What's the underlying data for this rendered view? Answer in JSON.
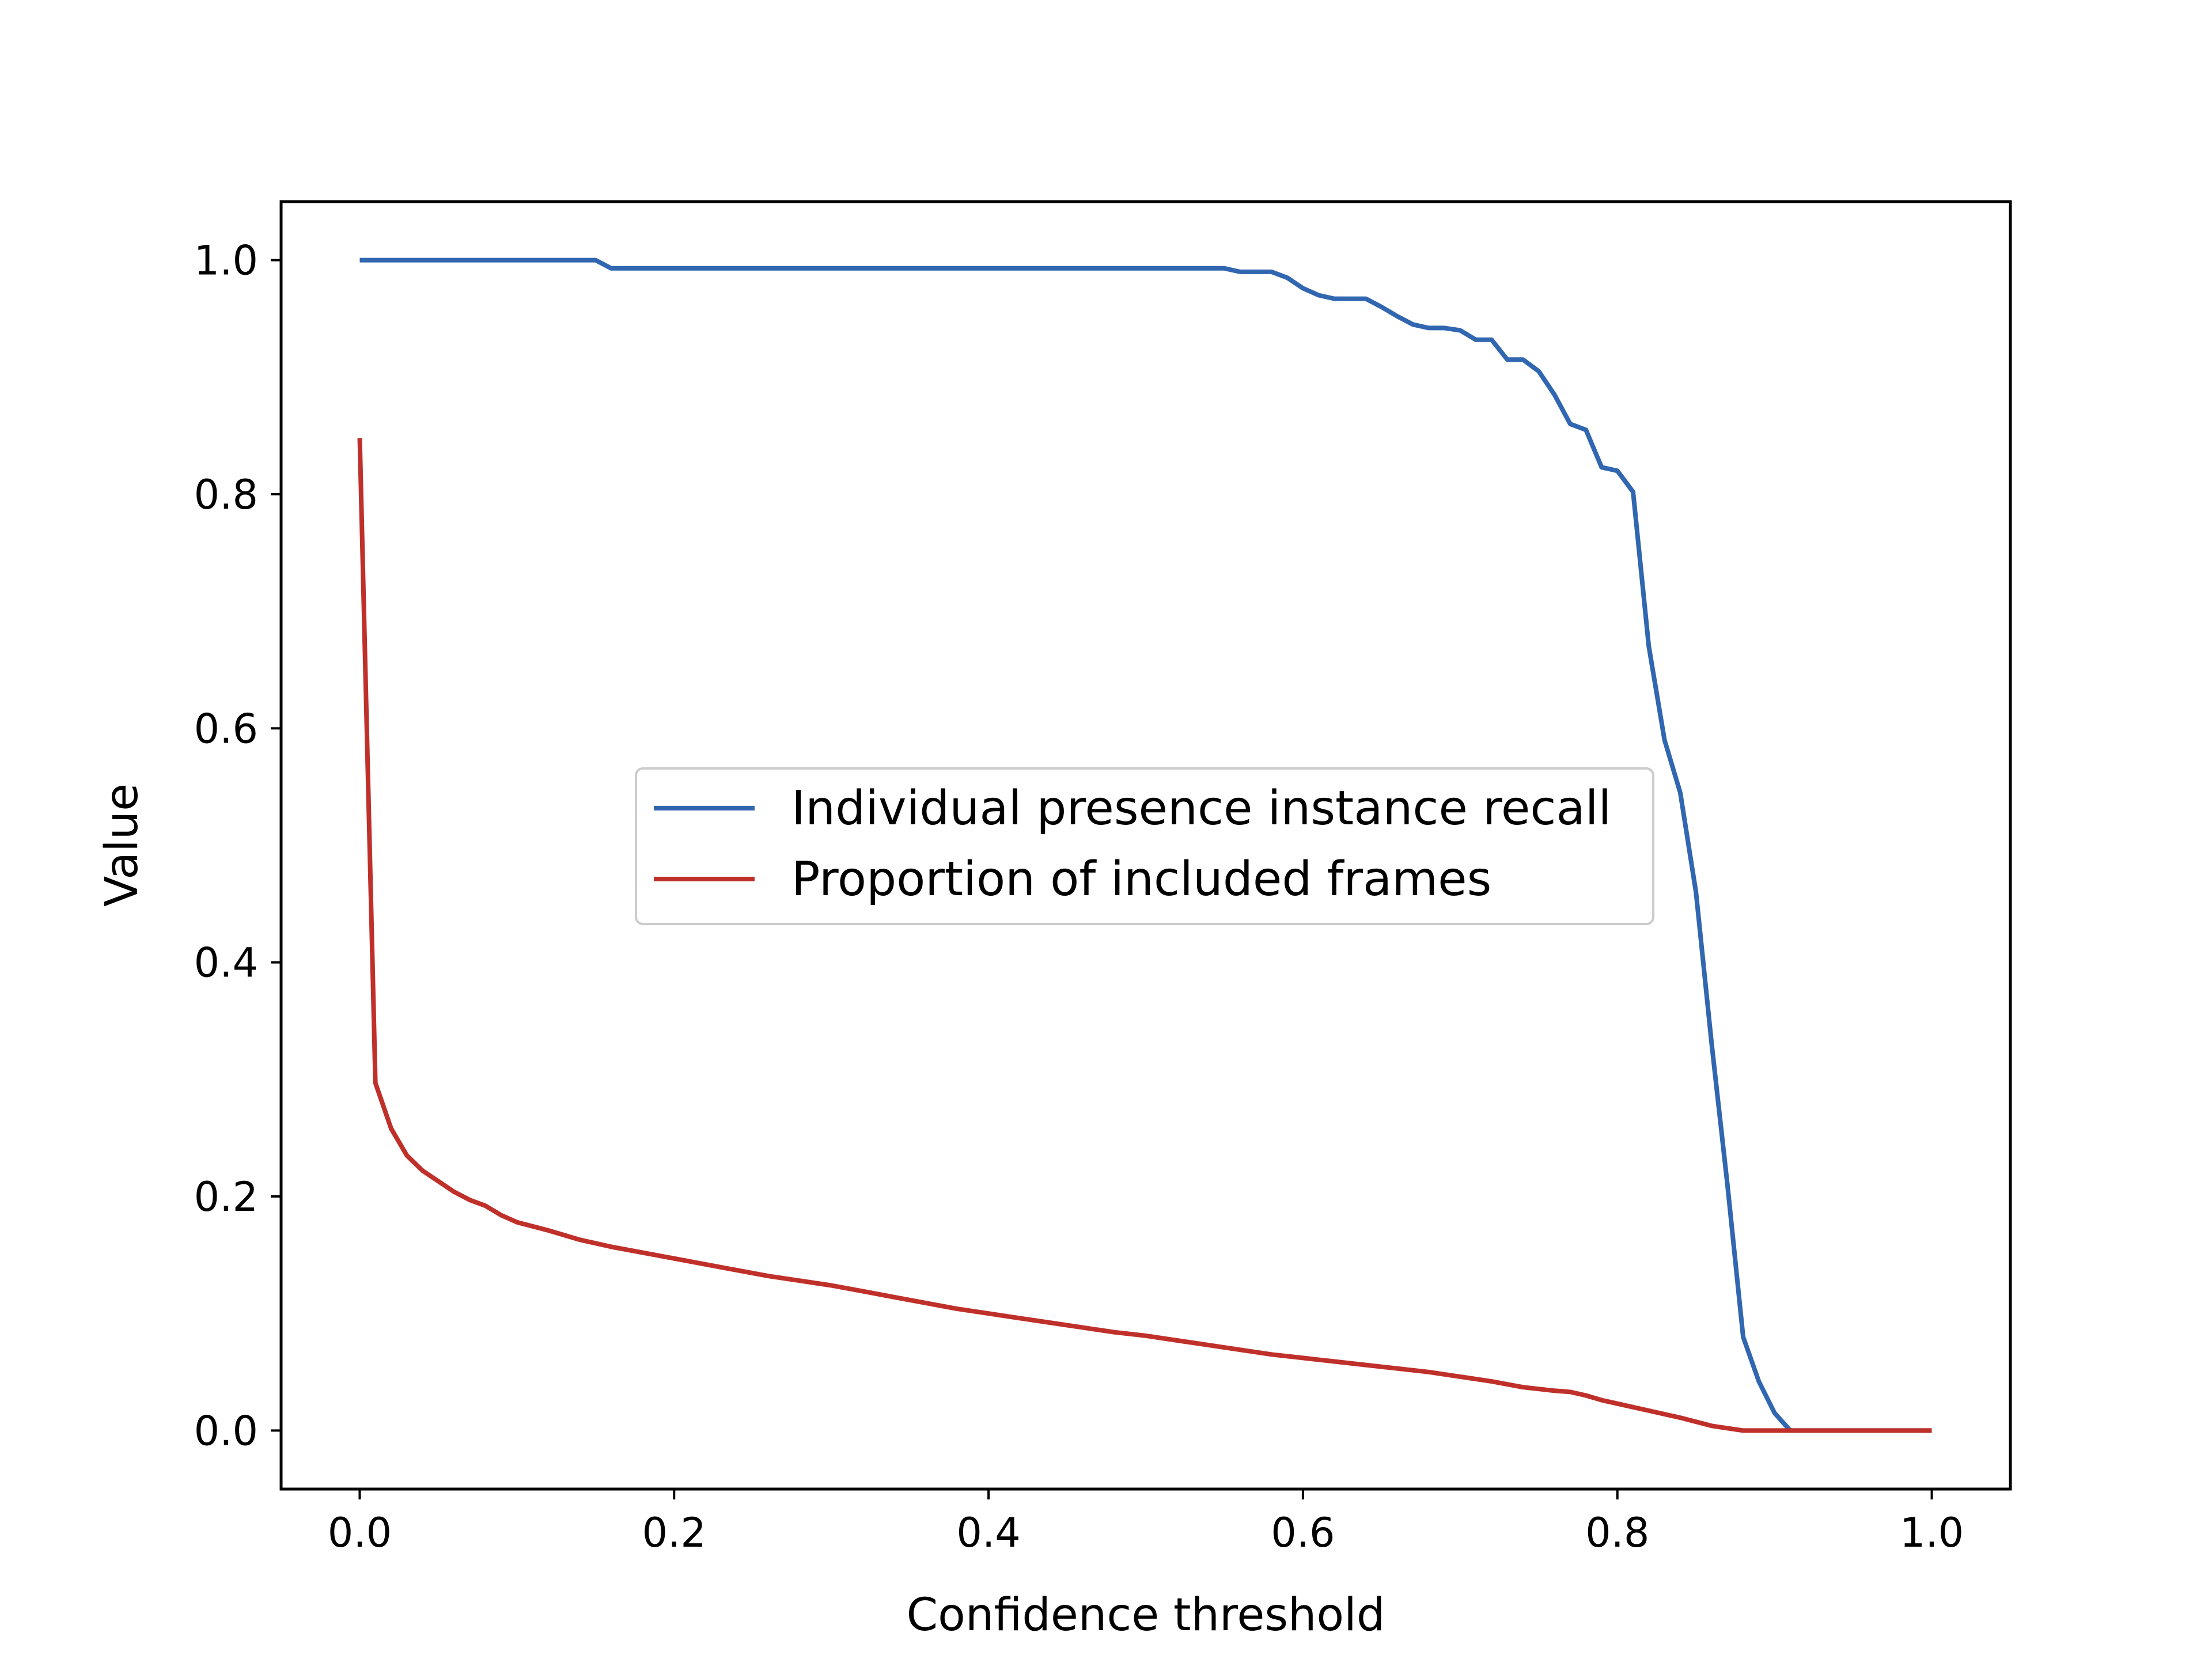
{
  "chart_data": {
    "type": "line",
    "xlabel": "Confidence threshold",
    "ylabel": "Value",
    "xlim": [
      -0.05,
      1.05
    ],
    "ylim": [
      -0.05,
      1.05
    ],
    "xticks": [
      0.0,
      0.2,
      0.4,
      0.6,
      0.8,
      1.0
    ],
    "yticks": [
      0.0,
      0.2,
      0.4,
      0.6,
      0.8,
      1.0
    ],
    "xtick_labels": [
      "0.0",
      "0.2",
      "0.4",
      "0.6",
      "0.8",
      "1.0"
    ],
    "ytick_labels": [
      "0.0",
      "0.2",
      "0.4",
      "0.6",
      "0.8",
      "1.0"
    ],
    "grid": false,
    "legend_position": "center",
    "series": [
      {
        "name": "Individual presence instance recall",
        "color": "#3166b0",
        "x": [
          0.0,
          0.15,
          0.16,
          0.55,
          0.56,
          0.58,
          0.59,
          0.6,
          0.61,
          0.62,
          0.64,
          0.65,
          0.66,
          0.67,
          0.68,
          0.69,
          0.7,
          0.71,
          0.72,
          0.73,
          0.74,
          0.75,
          0.76,
          0.77,
          0.78,
          0.79,
          0.8,
          0.81,
          0.82,
          0.83,
          0.84,
          0.85,
          0.86,
          0.87,
          0.88,
          0.89,
          0.9,
          0.91,
          1.0
        ],
        "values": [
          1.0,
          1.0,
          0.993,
          0.993,
          0.99,
          0.99,
          0.985,
          0.976,
          0.97,
          0.967,
          0.967,
          0.96,
          0.952,
          0.945,
          0.942,
          0.942,
          0.94,
          0.932,
          0.932,
          0.915,
          0.915,
          0.905,
          0.885,
          0.86,
          0.855,
          0.823,
          0.82,
          0.802,
          0.67,
          0.59,
          0.545,
          0.46,
          0.33,
          0.21,
          0.08,
          0.042,
          0.015,
          0.0,
          0.0
        ]
      },
      {
        "name": "Proportion of included frames",
        "color": "#c0302a",
        "x": [
          0.0,
          0.01,
          0.02,
          0.03,
          0.04,
          0.05,
          0.06,
          0.07,
          0.08,
          0.09,
          0.1,
          0.12,
          0.14,
          0.16,
          0.18,
          0.2,
          0.22,
          0.24,
          0.26,
          0.28,
          0.3,
          0.32,
          0.34,
          0.36,
          0.38,
          0.4,
          0.42,
          0.44,
          0.46,
          0.48,
          0.5,
          0.52,
          0.54,
          0.56,
          0.58,
          0.6,
          0.62,
          0.64,
          0.66,
          0.68,
          0.7,
          0.72,
          0.74,
          0.76,
          0.77,
          0.78,
          0.79,
          0.8,
          0.82,
          0.84,
          0.86,
          0.88,
          0.9,
          1.0
        ],
        "values": [
          0.848,
          0.297,
          0.258,
          0.235,
          0.222,
          0.213,
          0.204,
          0.197,
          0.192,
          0.184,
          0.178,
          0.171,
          0.163,
          0.157,
          0.152,
          0.147,
          0.142,
          0.137,
          0.132,
          0.128,
          0.124,
          0.119,
          0.114,
          0.109,
          0.104,
          0.1,
          0.096,
          0.092,
          0.088,
          0.084,
          0.081,
          0.077,
          0.073,
          0.069,
          0.065,
          0.062,
          0.059,
          0.056,
          0.053,
          0.05,
          0.046,
          0.042,
          0.037,
          0.034,
          0.033,
          0.03,
          0.026,
          0.023,
          0.017,
          0.011,
          0.004,
          0.0,
          0.0,
          0.0
        ]
      }
    ]
  }
}
